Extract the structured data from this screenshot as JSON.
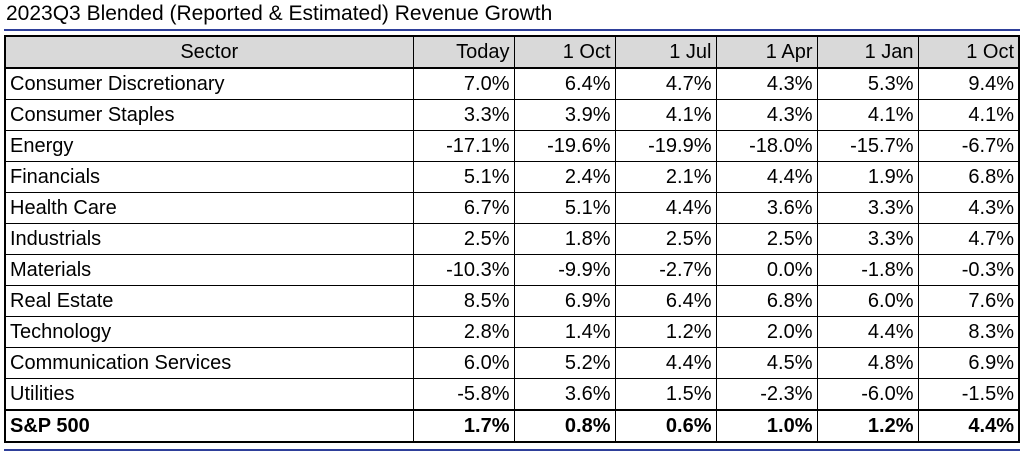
{
  "title": "2023Q3 Blended (Reported & Estimated) Revenue Growth",
  "table": {
    "headers": [
      "Sector",
      "Today",
      "1 Oct",
      "1 Jul",
      "1 Apr",
      "1 Jan",
      "1 Oct"
    ],
    "rows": [
      {
        "sector": "Consumer Discretionary",
        "values": [
          "7.0%",
          "6.4%",
          "4.7%",
          "4.3%",
          "5.3%",
          "9.4%"
        ]
      },
      {
        "sector": "Consumer Staples",
        "values": [
          "3.3%",
          "3.9%",
          "4.1%",
          "4.3%",
          "4.1%",
          "4.1%"
        ]
      },
      {
        "sector": "Energy",
        "values": [
          "-17.1%",
          "-19.6%",
          "-19.9%",
          "-18.0%",
          "-15.7%",
          "-6.7%"
        ]
      },
      {
        "sector": "Financials",
        "values": [
          "5.1%",
          "2.4%",
          "2.1%",
          "4.4%",
          "1.9%",
          "6.8%"
        ]
      },
      {
        "sector": "Health Care",
        "values": [
          "6.7%",
          "5.1%",
          "4.4%",
          "3.6%",
          "3.3%",
          "4.3%"
        ]
      },
      {
        "sector": "Industrials",
        "values": [
          "2.5%",
          "1.8%",
          "2.5%",
          "2.5%",
          "3.3%",
          "4.7%"
        ]
      },
      {
        "sector": "Materials",
        "values": [
          "-10.3%",
          "-9.9%",
          "-2.7%",
          "0.0%",
          "-1.8%",
          "-0.3%"
        ]
      },
      {
        "sector": "Real Estate",
        "values": [
          "8.5%",
          "6.9%",
          "6.4%",
          "6.8%",
          "6.0%",
          "7.6%"
        ]
      },
      {
        "sector": "Technology",
        "values": [
          "2.8%",
          "1.4%",
          "1.2%",
          "2.0%",
          "4.4%",
          "8.3%"
        ]
      },
      {
        "sector": "Communication Services",
        "values": [
          "6.0%",
          "5.2%",
          "4.4%",
          "4.5%",
          "4.8%",
          "6.9%"
        ]
      },
      {
        "sector": "Utilities",
        "values": [
          "-5.8%",
          "3.6%",
          "1.5%",
          "-2.3%",
          "-6.0%",
          "-1.5%"
        ]
      }
    ],
    "total": {
      "sector": "S&P 500",
      "values": [
        "1.7%",
        "0.8%",
        "0.6%",
        "1.0%",
        "1.2%",
        "4.4%"
      ]
    }
  },
  "colors": {
    "header_bg": "#d9d9d9",
    "rule": "#2e3f9a"
  }
}
